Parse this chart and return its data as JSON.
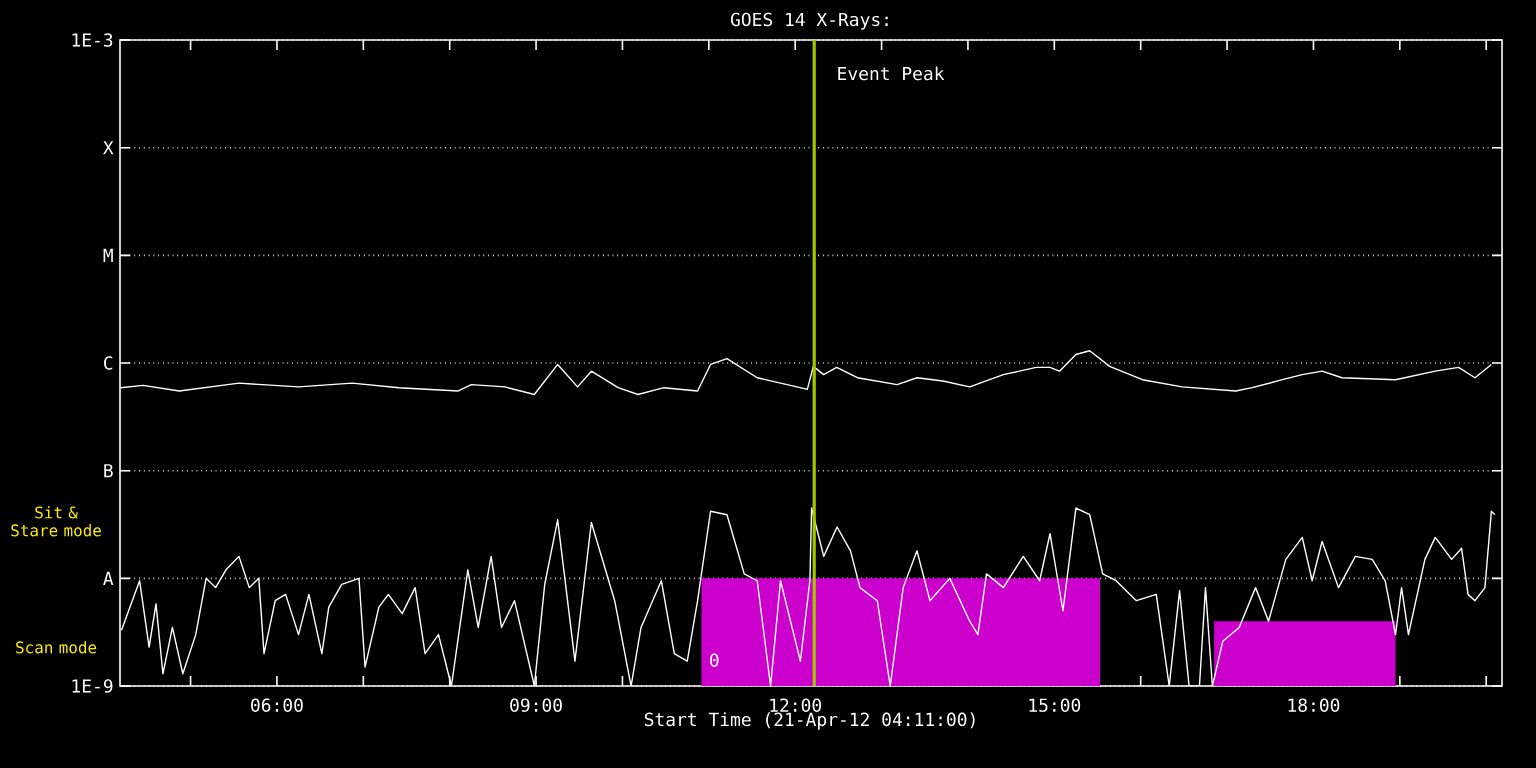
{
  "chart_data": {
    "type": "line",
    "title": "GOES 14 X-Rays:",
    "xlabel": "Start Time (21-Apr-12 04:11:00)",
    "xlim": [
      4.183,
      20.183
    ],
    "xticks": [
      {
        "value": 5,
        "label": null
      },
      {
        "value": 6,
        "label": "06:00"
      },
      {
        "value": 7,
        "label": null
      },
      {
        "value": 8,
        "label": null
      },
      {
        "value": 9,
        "label": "09:00"
      },
      {
        "value": 10,
        "label": null
      },
      {
        "value": 11,
        "label": null
      },
      {
        "value": 12,
        "label": "12:00"
      },
      {
        "value": 13,
        "label": null
      },
      {
        "value": 14,
        "label": null
      },
      {
        "value": 15,
        "label": "15:00"
      },
      {
        "value": 16,
        "label": null
      },
      {
        "value": 17,
        "label": null
      },
      {
        "value": 18,
        "label": "18:00"
      },
      {
        "value": 19,
        "label": null
      },
      {
        "value": 20,
        "label": null
      }
    ],
    "ylim": [
      1e-09,
      0.001
    ],
    "yticks": [
      {
        "value": 1e-09,
        "label": "1E-9"
      },
      {
        "value": 1e-08,
        "label": "A"
      },
      {
        "value": 1e-07,
        "label": "B"
      },
      {
        "value": 1e-06,
        "label": "C"
      },
      {
        "value": 1e-05,
        "label": "M"
      },
      {
        "value": 0.0001,
        "label": "X"
      },
      {
        "value": 0.001,
        "label": "1E-3"
      }
    ],
    "log": "y",
    "grid": "y",
    "series": [
      {
        "type": "area",
        "color": "#cc00cc",
        "x": [
          10.915,
          15.53,
          16.2,
          16.85,
          18.95
        ],
        "values": [
          1e-08,
          1e-08,
          null,
          4e-09,
          4e-09
        ]
      },
      {
        "color": "#ffffff",
        "x": [
          4.19,
          4.45,
          4.87,
          5.56,
          6.25,
          6.87,
          7.41,
          8.1,
          8.25,
          8.64,
          8.98,
          9.25,
          9.48,
          9.64,
          9.95,
          10.18,
          10.48,
          10.87,
          11.02,
          11.21,
          11.56,
          12.02,
          12.14,
          12.21,
          12.33,
          12.48,
          12.72,
          13.18,
          13.41,
          13.71,
          14.02,
          14.41,
          14.79,
          14.95,
          15.06,
          15.25,
          15.41,
          15.64,
          16.02,
          16.48,
          17.1,
          17.29,
          17.64,
          17.87,
          18.1,
          18.33,
          18.95,
          19.41,
          19.68,
          19.87,
          20.06
        ],
        "values": [
          5.9e-07,
          6.2e-07,
          5.5e-07,
          6.5e-07,
          6e-07,
          6.5e-07,
          5.9e-07,
          5.5e-07,
          6.3e-07,
          6e-07,
          5.1e-07,
          9.7e-07,
          6e-07,
          8.4e-07,
          5.9e-07,
          5.1e-07,
          5.9e-07,
          5.5e-07,
          9.7e-07,
          1.1e-06,
          7.3e-07,
          6e-07,
          5.7e-07,
          9.3e-07,
          7.8e-07,
          9.1e-07,
          7.3e-07,
          6.3e-07,
          7.3e-07,
          6.8e-07,
          6e-07,
          7.8e-07,
          9.1e-07,
          9.1e-07,
          8.4e-07,
          1.2e-06,
          1.3e-06,
          9.3e-07,
          7e-07,
          6e-07,
          5.5e-07,
          5.9e-07,
          7e-07,
          7.8e-07,
          8.4e-07,
          7.3e-07,
          7e-07,
          8.4e-07,
          9.1e-07,
          7.3e-07,
          9.7e-07
        ]
      },
      {
        "color": "#ffffff",
        "x": [
          4.2,
          4.41,
          4.52,
          4.6,
          4.68,
          4.79,
          4.91,
          5.06,
          5.18,
          5.29,
          5.41,
          5.56,
          5.68,
          5.79,
          5.85,
          5.98,
          6.1,
          6.25,
          6.37,
          6.52,
          6.6,
          6.75,
          6.95,
          7.02,
          7.18,
          7.29,
          7.45,
          7.6,
          7.715,
          7.87,
          8.02,
          8.21,
          8.33,
          8.48,
          8.6,
          8.75,
          8.98,
          9.1,
          9.25,
          9.45,
          9.64,
          9.91,
          10.1,
          10.215,
          10.45,
          10.6,
          10.75,
          10.87,
          11.02,
          11.21,
          11.41,
          11.56,
          11.715,
          11.83,
          12.06,
          12.17,
          12.19,
          12.33,
          12.485,
          12.64,
          12.75,
          12.95,
          13.1,
          13.25,
          13.41,
          13.56,
          13.79,
          14.02,
          14.115,
          14.215,
          14.41,
          14.64,
          14.83,
          14.95,
          15.1,
          15.25,
          15.41,
          15.56,
          15.715,
          15.95,
          16.18,
          16.33,
          16.45,
          16.56,
          16.68,
          16.75,
          16.83,
          16.95,
          17.14,
          17.33,
          17.48,
          17.68,
          17.87,
          17.985,
          18.1,
          18.29,
          18.485,
          18.68,
          18.83,
          18.95,
          19.02,
          19.1,
          19.29,
          19.41,
          19.6,
          19.715,
          19.79,
          19.87,
          19.985,
          20.06,
          20.1
        ],
        "values": [
          3.3e-09,
          9.5e-09,
          2.3e-09,
          5.8e-09,
          1.3e-09,
          3.5e-09,
          1.3e-09,
          3e-09,
          1e-08,
          8.2e-09,
          1.2e-08,
          1.6e-08,
          8.2e-09,
          1e-08,
          2e-09,
          6.2e-09,
          7.1e-09,
          3e-09,
          7.1e-09,
          2e-09,
          5.4e-09,
          8.8e-09,
          1e-08,
          1.5e-09,
          5.4e-09,
          7.1e-09,
          4.7e-09,
          8.2e-09,
          2e-09,
          3e-09,
          1e-09,
          1.2e-08,
          3.5e-09,
          1.6e-08,
          3.5e-09,
          6.2e-09,
          1e-09,
          8.8e-09,
          3.5e-08,
          1.7e-09,
          3.3e-08,
          6.2e-09,
          1e-09,
          3.5e-09,
          9.5e-09,
          2e-09,
          1.7e-09,
          6.2e-09,
          4.2e-08,
          3.9e-08,
          1.1e-08,
          9.5e-09,
          1e-09,
          9.5e-09,
          1.7e-09,
          9.5e-09,
          4.5e-08,
          1.6e-08,
          3e-08,
          1.8e-08,
          8.2e-09,
          6.2e-09,
          1e-09,
          8.2e-09,
          1.8e-08,
          6.2e-09,
          1e-08,
          4e-09,
          3e-09,
          1.1e-08,
          8.2e-09,
          1.6e-08,
          9.5e-09,
          2.6e-08,
          5e-09,
          4.5e-08,
          3.9e-08,
          1.1e-08,
          9.5e-09,
          6.2e-09,
          7.1e-09,
          1e-09,
          7.7e-09,
          1e-09,
          1e-09,
          8.2e-09,
          1e-09,
          2.6e-09,
          3.5e-09,
          8.2e-09,
          4e-09,
          1.5e-08,
          2.4e-08,
          9.5e-09,
          2.2e-08,
          8.2e-09,
          1.6e-08,
          1.5e-08,
          9.5e-09,
          3e-09,
          8.2e-09,
          3e-09,
          1.5e-08,
          2.4e-08,
          1.5e-08,
          1.9e-08,
          7.1e-09,
          6.2e-09,
          8.2e-09,
          4.2e-08,
          3.9e-08
        ]
      }
    ],
    "ref_lines": [
      {
        "axis": "x",
        "value": 12.22,
        "label": "Event Peak",
        "color": "#a0c800"
      }
    ],
    "annotations": [
      "Sit & Stare mode",
      "Scan mode",
      "0"
    ]
  }
}
